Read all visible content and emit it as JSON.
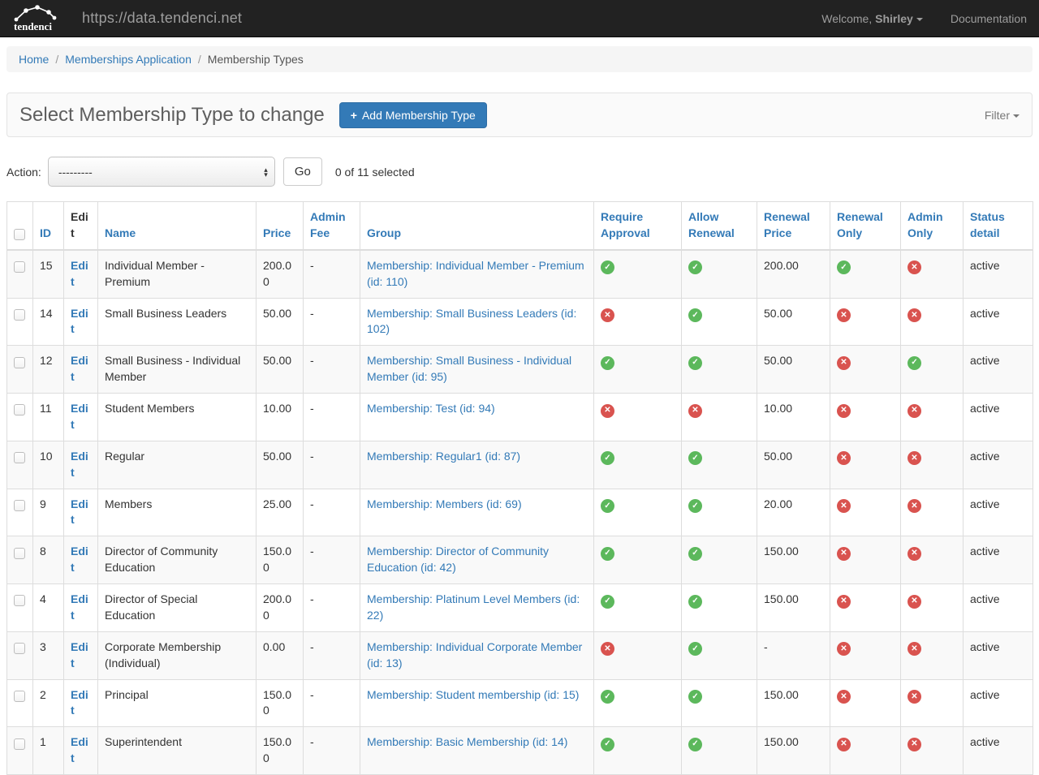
{
  "navbar": {
    "logo_text": "tendenci",
    "url": "https://data.tendenci.net",
    "welcome_prefix": "Welcome, ",
    "user": "Shirley",
    "documentation": "Documentation"
  },
  "breadcrumb": {
    "separator": "/",
    "items": [
      {
        "label": "Home"
      },
      {
        "label": "Memberships Application"
      },
      {
        "label": "Membership Types"
      }
    ]
  },
  "header": {
    "title": "Select Membership Type to change",
    "add_button": "Add Membership Type",
    "plus_glyph": "+",
    "filter_label": "Filter"
  },
  "actions": {
    "label": "Action:",
    "selected_option": "---------",
    "go_label": "Go",
    "selection_status": "0 of 11 selected"
  },
  "icons": {
    "check_glyph": "✓",
    "cross_glyph": "✕",
    "check_name": "check-circle-icon",
    "cross_name": "cross-circle-icon"
  },
  "colors": {
    "accent": "#337ab7",
    "success": "#5cb85c",
    "danger": "#d9534f",
    "navbar_bg": "#222222",
    "stripe": "#f9f9f9"
  },
  "table": {
    "columns": [
      "ID",
      "Edit",
      "Name",
      "Price",
      "Admin Fee",
      "Group",
      "Require Approval",
      "Allow Renewal",
      "Renewal Price",
      "Renewal Only",
      "Admin Only",
      "Status detail"
    ],
    "edit_label": "Edit",
    "rows": [
      {
        "id": "15",
        "name": "Individual Member - Premium",
        "price": "200.00",
        "admin_fee": "-",
        "group": "Membership: Individual Member - Premium (id: 110)",
        "require_approval": true,
        "allow_renewal": true,
        "renewal_price": "200.00",
        "renewal_only": true,
        "admin_only": false,
        "status_detail": "active"
      },
      {
        "id": "14",
        "name": "Small Business Leaders",
        "price": "50.00",
        "admin_fee": "-",
        "group": "Membership: Small Business Leaders (id: 102)",
        "require_approval": false,
        "allow_renewal": true,
        "renewal_price": "50.00",
        "renewal_only": false,
        "admin_only": false,
        "status_detail": "active"
      },
      {
        "id": "12",
        "name": "Small Business - Individual Member",
        "price": "50.00",
        "admin_fee": "-",
        "group": "Membership: Small Business - Individual Member (id: 95)",
        "require_approval": true,
        "allow_renewal": true,
        "renewal_price": "50.00",
        "renewal_only": false,
        "admin_only": true,
        "status_detail": "active"
      },
      {
        "id": "11",
        "name": "Student Members",
        "price": "10.00",
        "admin_fee": "-",
        "group": "Membership: Test (id: 94)",
        "require_approval": false,
        "allow_renewal": false,
        "renewal_price": "10.00",
        "renewal_only": false,
        "admin_only": false,
        "status_detail": "active"
      },
      {
        "id": "10",
        "name": "Regular",
        "price": "50.00",
        "admin_fee": "-",
        "group": "Membership: Regular1 (id: 87)",
        "require_approval": true,
        "allow_renewal": true,
        "renewal_price": "50.00",
        "renewal_only": false,
        "admin_only": false,
        "status_detail": "active"
      },
      {
        "id": "9",
        "name": "Members",
        "price": "25.00",
        "admin_fee": "-",
        "group": "Membership: Members (id: 69)",
        "require_approval": true,
        "allow_renewal": true,
        "renewal_price": "20.00",
        "renewal_only": false,
        "admin_only": false,
        "status_detail": "active"
      },
      {
        "id": "8",
        "name": "Director of Community Education",
        "price": "150.00",
        "admin_fee": "-",
        "group": "Membership: Director of Community Education (id: 42)",
        "require_approval": true,
        "allow_renewal": true,
        "renewal_price": "150.00",
        "renewal_only": false,
        "admin_only": false,
        "status_detail": "active"
      },
      {
        "id": "4",
        "name": "Director of Special Education",
        "price": "200.00",
        "admin_fee": "-",
        "group": "Membership: Platinum Level Members (id: 22)",
        "require_approval": true,
        "allow_renewal": true,
        "renewal_price": "150.00",
        "renewal_only": false,
        "admin_only": false,
        "status_detail": "active"
      },
      {
        "id": "3",
        "name": "Corporate Membership (Individual)",
        "price": "0.00",
        "admin_fee": "-",
        "group": "Membership: Individual Corporate Member (id: 13)",
        "require_approval": false,
        "allow_renewal": true,
        "renewal_price": "-",
        "renewal_only": false,
        "admin_only": false,
        "status_detail": "active"
      },
      {
        "id": "2",
        "name": "Principal",
        "price": "150.00",
        "admin_fee": "-",
        "group": "Membership: Student membership (id: 15)",
        "require_approval": true,
        "allow_renewal": true,
        "renewal_price": "150.00",
        "renewal_only": false,
        "admin_only": false,
        "status_detail": "active"
      },
      {
        "id": "1",
        "name": "Superintendent",
        "price": "150.00",
        "admin_fee": "-",
        "group": "Membership: Basic Membership (id: 14)",
        "require_approval": true,
        "allow_renewal": true,
        "renewal_price": "150.00",
        "renewal_only": false,
        "admin_only": false,
        "status_detail": "active"
      }
    ]
  }
}
